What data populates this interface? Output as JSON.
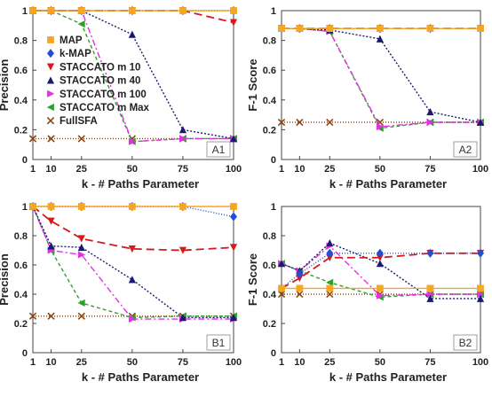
{
  "chart_data": [
    {
      "type": "line",
      "panel_label": "A1",
      "xlabel": "k - # Paths Parameter",
      "ylabel": "Precision",
      "x": [
        1,
        10,
        25,
        50,
        75,
        100
      ],
      "x_tick_labels": [
        "1",
        "10",
        "25",
        "50",
        "75",
        "100"
      ],
      "ylim": [
        0,
        1
      ],
      "y_ticks": [
        "0",
        "0.2",
        "0.4",
        "0.6",
        "0.8",
        "1"
      ],
      "grid": false,
      "legend": {
        "placement": "left",
        "entries": [
          "MAP",
          "k-MAP",
          "STACCATO m 10",
          "STACCATO m 40",
          "STACCATO m 100",
          "STACCATO m Max",
          "FullSFA"
        ]
      },
      "series": [
        {
          "name": "MAP",
          "values": [
            1,
            1,
            1,
            1,
            1,
            1
          ]
        },
        {
          "name": "k-MAP",
          "values": [
            1,
            1,
            1,
            1,
            1,
            1
          ]
        },
        {
          "name": "STACCATO m 10",
          "values": [
            1,
            1,
            1,
            1,
            1,
            0.92
          ]
        },
        {
          "name": "STACCATO m 40",
          "values": [
            1,
            1,
            1,
            0.84,
            0.2,
            0.14
          ]
        },
        {
          "name": "STACCATO m 100",
          "values": [
            1,
            1,
            1,
            0.12,
            0.14,
            0.14
          ]
        },
        {
          "name": "STACCATO m Max",
          "values": [
            1,
            1,
            0.91,
            0.12,
            0.14,
            0.14
          ]
        },
        {
          "name": "FullSFA",
          "values": [
            0.14,
            0.14,
            0.14,
            0.14,
            0.14,
            0.14
          ]
        }
      ]
    },
    {
      "type": "line",
      "panel_label": "A2",
      "xlabel": "k - # Paths Parameter",
      "ylabel": "F-1 Score",
      "x": [
        1,
        10,
        25,
        50,
        75,
        100
      ],
      "x_tick_labels": [
        "1",
        "10",
        "25",
        "50",
        "75",
        "100"
      ],
      "ylim": [
        0,
        1
      ],
      "y_ticks": [
        "0",
        "0.2",
        "0.4",
        "0.6",
        "0.8",
        "1"
      ],
      "grid": false,
      "series": [
        {
          "name": "MAP",
          "values": [
            0.88,
            0.88,
            0.88,
            0.88,
            0.88,
            0.88
          ]
        },
        {
          "name": "k-MAP",
          "values": [
            0.88,
            0.88,
            0.88,
            0.88,
            0.88,
            0.88
          ]
        },
        {
          "name": "STACCATO m 10",
          "values": [
            0.88,
            0.88,
            0.88,
            0.88,
            0.88,
            0.88
          ]
        },
        {
          "name": "STACCATO m 40",
          "values": [
            0.88,
            0.88,
            0.87,
            0.81,
            0.32,
            0.25
          ]
        },
        {
          "name": "STACCATO m 100",
          "values": [
            0.88,
            0.88,
            0.86,
            0.22,
            0.25,
            0.25
          ]
        },
        {
          "name": "STACCATO m Max",
          "values": [
            0.88,
            0.88,
            0.86,
            0.21,
            0.25,
            0.25
          ]
        },
        {
          "name": "FullSFA",
          "values": [
            0.25,
            0.25,
            0.25,
            0.25,
            0.25,
            0.25
          ]
        }
      ]
    },
    {
      "type": "line",
      "panel_label": "B1",
      "xlabel": "k - # Paths Parameter",
      "ylabel": "Precision",
      "x": [
        1,
        10,
        25,
        50,
        75,
        100
      ],
      "x_tick_labels": [
        "1",
        "10",
        "25",
        "50",
        "75",
        "100"
      ],
      "ylim": [
        0,
        1
      ],
      "y_ticks": [
        "0",
        "0.2",
        "0.4",
        "0.6",
        "0.8",
        "1"
      ],
      "grid": false,
      "series": [
        {
          "name": "MAP",
          "values": [
            1,
            1,
            1,
            1,
            1,
            1
          ]
        },
        {
          "name": "k-MAP",
          "values": [
            1,
            1,
            1,
            1,
            1,
            0.93
          ]
        },
        {
          "name": "STACCATO m 10",
          "values": [
            1,
            0.9,
            0.78,
            0.71,
            0.7,
            0.72
          ]
        },
        {
          "name": "STACCATO m 40",
          "values": [
            1,
            0.73,
            0.72,
            0.5,
            0.24,
            0.24
          ]
        },
        {
          "name": "STACCATO m 100",
          "values": [
            1,
            0.7,
            0.67,
            0.23,
            0.23,
            0.23
          ]
        },
        {
          "name": "STACCATO m Max",
          "values": [
            1,
            0.7,
            0.34,
            0.24,
            0.25,
            0.25
          ]
        },
        {
          "name": "FullSFA",
          "values": [
            0.25,
            0.25,
            0.25,
            0.25,
            0.25,
            0.25
          ]
        }
      ]
    },
    {
      "type": "line",
      "panel_label": "B2",
      "xlabel": "k - # Paths Parameter",
      "ylabel": "F-1 Score",
      "x": [
        1,
        10,
        25,
        50,
        75,
        100
      ],
      "x_tick_labels": [
        "1",
        "10",
        "25",
        "50",
        "75",
        "100"
      ],
      "ylim": [
        0,
        1
      ],
      "y_ticks": [
        "0",
        "0.2",
        "0.4",
        "0.6",
        "0.8",
        "1"
      ],
      "grid": false,
      "series": [
        {
          "name": "MAP",
          "values": [
            0.44,
            0.44,
            0.44,
            0.44,
            0.44,
            0.44
          ]
        },
        {
          "name": "k-MAP",
          "values": [
            0.44,
            0.54,
            0.68,
            0.68,
            0.68,
            0.68
          ]
        },
        {
          "name": "STACCATO m 10",
          "values": [
            0.44,
            0.51,
            0.65,
            0.65,
            0.68,
            0.68
          ]
        },
        {
          "name": "STACCATO m 40",
          "values": [
            0.61,
            0.56,
            0.75,
            0.61,
            0.37,
            0.37
          ]
        },
        {
          "name": "STACCATO m 100",
          "values": [
            0.61,
            0.56,
            0.73,
            0.39,
            0.4,
            0.4
          ]
        },
        {
          "name": "STACCATO m Max",
          "values": [
            0.61,
            0.56,
            0.48,
            0.38,
            0.4,
            0.4
          ]
        },
        {
          "name": "FullSFA",
          "values": [
            0.4,
            0.4,
            0.4,
            0.4,
            0.4,
            0.4
          ]
        }
      ]
    }
  ],
  "style": {
    "series_colors": [
      "#f5a623",
      "#1f4fd6",
      "#d7191c",
      "#1a1a6e",
      "#e62ee6",
      "#2ca02c",
      "#8b4513"
    ],
    "series_markers": [
      "square",
      "diamond",
      "triangle-down",
      "triangle-up",
      "triangle-right",
      "triangle-left",
      "x"
    ],
    "series_dashes": [
      "",
      "1,2",
      "9,5",
      "2,2",
      "7,3,2,3",
      "4,3",
      "1,2"
    ]
  }
}
